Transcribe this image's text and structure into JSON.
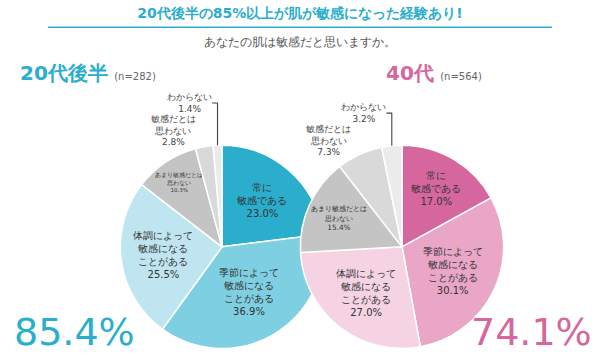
{
  "title": "20代後半の85%以上が肌が敏感になった経験あり!",
  "subtitle": "あなたの肌は敏感だと思いますか。",
  "chart_data": [
    {
      "type": "pie",
      "title": "20代後半",
      "subtitle": "(n=282)",
      "color": "#2aaecb",
      "categories": [
        "常に\n敏感である",
        "季節によって\n敏感になる\nことがある",
        "体調によって\n敏感になる\nことがある",
        "あまり敏感だとは\n思わない",
        "敏感だとは\n思わない",
        "わからない"
      ],
      "values": [
        23.0,
        36.9,
        25.5,
        10.3,
        2.8,
        1.4
      ],
      "value_labels": [
        "23.0%",
        "36.9%",
        "25.5%",
        "10.3%",
        "2.8%",
        "1.4%"
      ],
      "colors": [
        "#2aaecb",
        "#7fcfe2",
        "#bfe6f0",
        "#c4c4c4",
        "#d9d9d9",
        "#ebebeb"
      ],
      "data_labels": true,
      "annotations": [
        "85.4%"
      ]
    },
    {
      "type": "pie",
      "title": "40代",
      "subtitle": "(n=564)",
      "color": "#d6679e",
      "categories": [
        "常に\n敏感である",
        "季節によって\n敏感になる\nことがある",
        "体調によって\n敏感になる\nことがある",
        "あまり敏感だとは\n思わない",
        "敏感だとは\n思わない",
        "わからない"
      ],
      "values": [
        17.0,
        30.1,
        27.0,
        15.4,
        7.3,
        3.2
      ],
      "value_labels": [
        "17.0%",
        "30.1%",
        "27.0%",
        "15.4%",
        "7.3%",
        "3.2%"
      ],
      "colors": [
        "#d6679e",
        "#e9a6c6",
        "#f5d3e2",
        "#c4c4c4",
        "#d9d9d9",
        "#ebebeb"
      ],
      "data_labels": true,
      "annotations": [
        "74.1%"
      ]
    }
  ]
}
